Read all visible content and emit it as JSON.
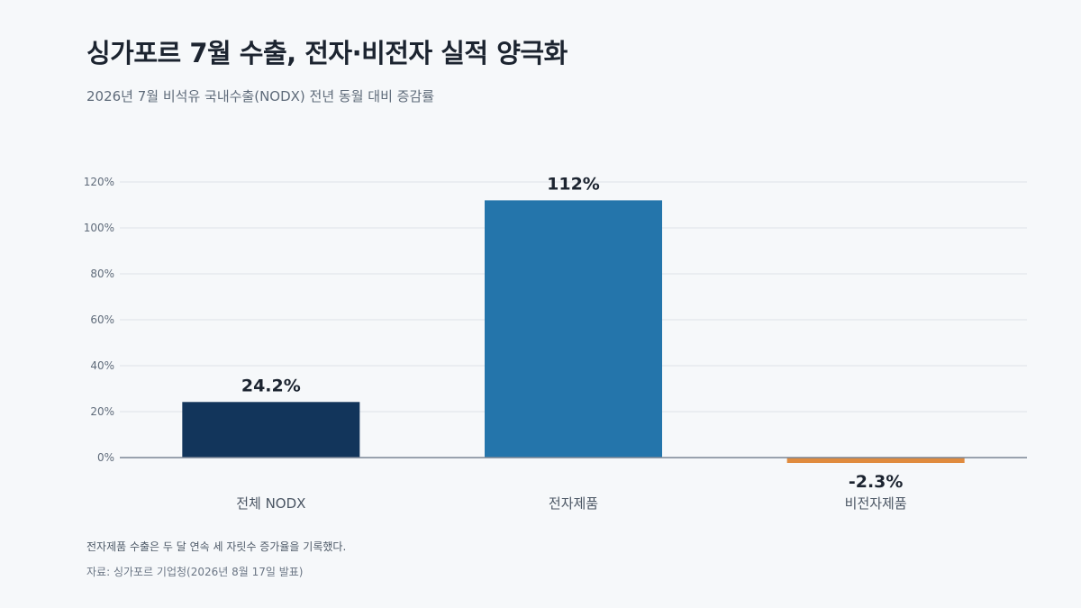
{
  "title": "싱가포르 7월 수출, 전자·비전자 실적 양극화",
  "subtitle": "2026년 7월 비석유 국내수출(NODX) 전년 동월 대비 증감률",
  "note": "전자제품 수출은 두 달 연속 세 자릿수 증가율을 기록했다.",
  "source": "자료: 싱가포르 기업청(2026년 8월 17일 발표)",
  "chart_data": {
    "type": "bar",
    "categories": [
      "전체 NODX",
      "전자제품",
      "비전자제품"
    ],
    "values": [
      24.2,
      112,
      -2.3
    ],
    "data_labels": [
      "24.2%",
      "112%",
      "-2.3%"
    ],
    "colors": [
      "#12355b",
      "#2475ab",
      "#e08b3e"
    ],
    "yticks": [
      0,
      20,
      40,
      60,
      80,
      100,
      120
    ],
    "ytick_labels": [
      "0%",
      "20%",
      "40%",
      "60%",
      "80%",
      "100%",
      "120%"
    ],
    "ylim": [
      -4,
      120
    ],
    "grid": true,
    "legend": "none"
  }
}
